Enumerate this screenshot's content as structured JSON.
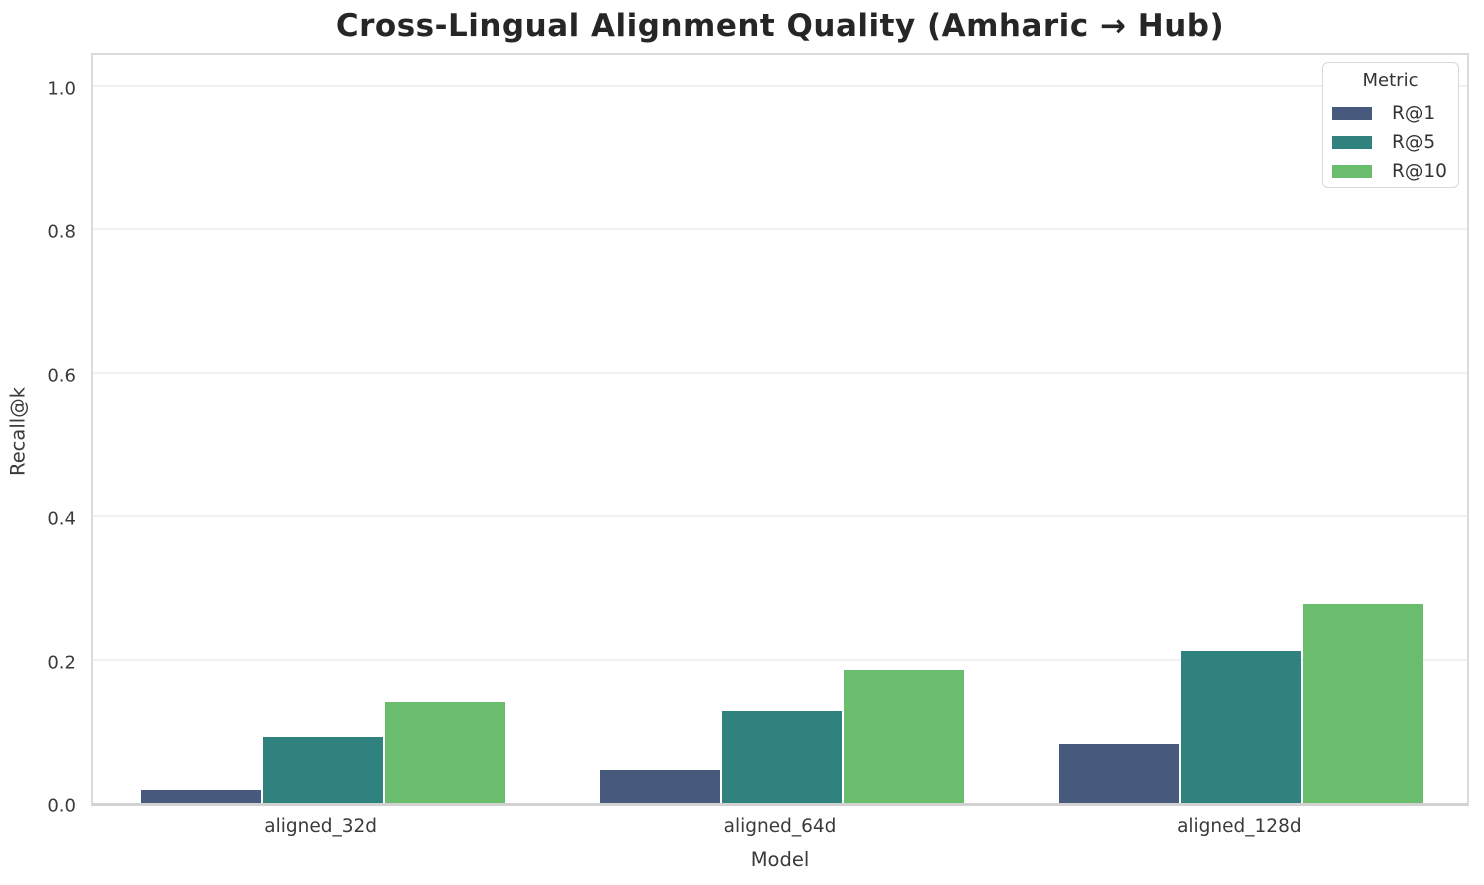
{
  "chart_data": {
    "type": "bar",
    "title": "Cross-Lingual Alignment Quality (Amharic → Hub)",
    "xlabel": "Model",
    "ylabel": "Recall@k",
    "categories": [
      "aligned_32d",
      "aligned_64d",
      "aligned_128d"
    ],
    "series": [
      {
        "name": "R@1",
        "color": "#475A7E",
        "values": [
          0.018,
          0.046,
          0.082
        ]
      },
      {
        "name": "R@5",
        "color": "#2F827D",
        "values": [
          0.092,
          0.128,
          0.212
        ]
      },
      {
        "name": "R@10",
        "color": "#69BD6C",
        "values": [
          0.141,
          0.185,
          0.278
        ]
      }
    ],
    "ylim": [
      0.0,
      1.05
    ],
    "yticks": [
      "0.0",
      "0.2",
      "0.4",
      "0.6",
      "0.8",
      "1.0"
    ],
    "ytick_values": [
      0.0,
      0.2,
      0.4,
      0.6,
      0.8,
      1.0
    ],
    "grid": true,
    "legend": {
      "title": "Metric",
      "position": "upper right"
    },
    "colors": {
      "title_text": "#262626",
      "tick_text": "#3a3a3a",
      "gridline": "#f0f0f0",
      "spine": "#d6d6d6"
    }
  }
}
